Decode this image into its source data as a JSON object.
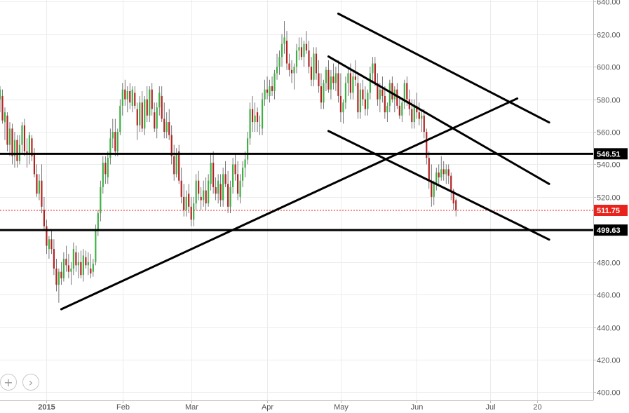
{
  "chart_data": {
    "type": "candlestick",
    "y_axis": {
      "position": "right",
      "range": [
        395,
        641
      ],
      "ticks": [
        "400.00",
        "420.00",
        "440.00",
        "460.00",
        "480.00",
        "500.00",
        "520.00",
        "540.00",
        "560.00",
        "580.00",
        "600.00",
        "620.00",
        "640.00"
      ]
    },
    "x_axis": {
      "labels": [
        {
          "label": "2015",
          "day": 0
        },
        {
          "label": "Feb",
          "day": 31
        },
        {
          "label": "Mar",
          "day": 59
        },
        {
          "label": "Apr",
          "day": 90
        },
        {
          "label": "May",
          "day": 120
        },
        {
          "label": "Jun",
          "day": 151
        },
        {
          "label": "Jul",
          "day": 181
        },
        {
          "label": "20",
          "day": 200
        }
      ],
      "range_days": [
        -19,
        223
      ]
    },
    "grid": true,
    "colors": {
      "up": "#3cb043",
      "down": "#b22222",
      "line": "#000000",
      "last_price": "#e8231c",
      "grid": "#ececec"
    },
    "horizontal_levels": [
      {
        "value": 546.51,
        "label": "546.51",
        "style": "solid"
      },
      {
        "value": 499.63,
        "label": "499.63",
        "style": "solid"
      },
      {
        "value": 511.75,
        "label": "511.75",
        "style": "dashed-red"
      }
    ],
    "trendlines": [
      {
        "from": [
          6,
          451.0
        ],
        "to": [
          192,
          580.5
        ]
      },
      {
        "from": [
          119,
          632.6
        ],
        "to": [
          205,
          565.8
        ]
      },
      {
        "from": [
          115,
          606.3
        ],
        "to": [
          205,
          528.0
        ]
      },
      {
        "from": [
          115,
          560.5
        ],
        "to": [
          205,
          493.8
        ]
      }
    ],
    "candles": [
      [
        -19,
        580,
        588,
        572,
        586
      ],
      [
        -18,
        582,
        586,
        565,
        567
      ],
      [
        -17,
        566,
        575,
        555,
        572
      ],
      [
        -16,
        570,
        572,
        548,
        552
      ],
      [
        -15,
        552,
        566,
        545,
        562
      ],
      [
        -14,
        562,
        565,
        540,
        545
      ],
      [
        -13,
        545,
        560,
        538,
        555
      ],
      [
        -12,
        555,
        558,
        538,
        542
      ],
      [
        -11,
        542,
        558,
        540,
        552
      ],
      [
        -10,
        552,
        566,
        546,
        564
      ],
      [
        -9,
        564,
        568,
        545,
        548
      ],
      [
        -8,
        548,
        556,
        538,
        546
      ],
      [
        -7,
        546,
        560,
        540,
        558
      ],
      [
        -6,
        556,
        558,
        542,
        545
      ],
      [
        -5,
        547,
        550,
        532,
        534
      ],
      [
        -4,
        534,
        540,
        520,
        522
      ],
      [
        -3,
        522,
        534,
        518,
        530
      ],
      [
        -2,
        530,
        540,
        510,
        514
      ],
      [
        -1,
        512,
        520,
        500,
        502
      ],
      [
        0,
        502,
        506,
        485,
        490
      ],
      [
        1,
        488,
        496,
        482,
        494
      ],
      [
        2,
        494,
        500,
        485,
        488
      ],
      [
        3,
        488,
        494,
        472,
        476
      ],
      [
        4,
        476,
        482,
        462,
        466
      ],
      [
        5,
        466,
        476,
        455,
        474
      ],
      [
        6,
        474,
        480,
        466,
        470
      ],
      [
        7,
        470,
        486,
        468,
        482
      ],
      [
        8,
        482,
        490,
        474,
        478
      ],
      [
        9,
        478,
        485,
        470,
        474
      ],
      [
        10,
        474,
        480,
        466,
        476
      ],
      [
        11,
        476,
        492,
        472,
        488
      ],
      [
        12,
        486,
        490,
        474,
        478
      ],
      [
        13,
        478,
        486,
        470,
        480
      ],
      [
        14,
        480,
        487,
        470,
        472
      ],
      [
        15,
        472,
        488,
        468,
        484
      ],
      [
        16,
        483,
        487,
        476,
        478
      ],
      [
        17,
        478,
        486,
        472,
        480
      ],
      [
        18,
        476,
        485,
        470,
        473
      ],
      [
        19,
        474,
        482,
        471,
        479
      ],
      [
        20,
        480,
        503,
        478,
        500
      ],
      [
        21,
        500,
        512,
        496,
        510
      ],
      [
        22,
        510,
        530,
        505,
        526
      ],
      [
        23,
        526,
        545,
        522,
        541
      ],
      [
        24,
        541,
        545,
        528,
        534
      ],
      [
        25,
        532,
        548,
        528,
        544
      ],
      [
        26,
        544,
        562,
        540,
        556
      ],
      [
        27,
        556,
        568,
        550,
        560
      ],
      [
        28,
        560,
        568,
        545,
        548
      ],
      [
        29,
        548,
        562,
        545,
        560
      ],
      [
        30,
        560,
        580,
        558,
        576
      ],
      [
        31,
        576,
        590,
        570,
        586
      ],
      [
        32,
        586,
        592,
        576,
        580
      ],
      [
        33,
        580,
        588,
        572,
        585
      ],
      [
        34,
        585,
        590,
        574,
        578
      ],
      [
        35,
        576,
        588,
        572,
        586
      ],
      [
        36,
        584,
        588,
        574,
        576
      ],
      [
        37,
        574,
        578,
        555,
        564
      ],
      [
        38,
        564,
        582,
        560,
        578
      ],
      [
        39,
        578,
        585,
        560,
        562
      ],
      [
        40,
        562,
        582,
        558,
        580
      ],
      [
        41,
        580,
        588,
        566,
        570
      ],
      [
        42,
        570,
        588,
        566,
        586
      ],
      [
        43,
        586,
        590,
        570,
        574
      ],
      [
        44,
        572,
        578,
        560,
        562
      ],
      [
        45,
        562,
        578,
        556,
        575
      ],
      [
        46,
        575,
        588,
        570,
        584
      ],
      [
        47,
        582,
        588,
        566,
        568
      ],
      [
        48,
        568,
        578,
        556,
        560
      ],
      [
        49,
        560,
        572,
        556,
        566
      ],
      [
        50,
        566,
        574,
        555,
        558
      ],
      [
        51,
        558,
        564,
        540,
        545
      ],
      [
        52,
        545,
        552,
        530,
        534
      ],
      [
        53,
        534,
        550,
        532,
        546
      ],
      [
        54,
        548,
        552,
        528,
        530
      ],
      [
        55,
        530,
        538,
        516,
        520
      ],
      [
        56,
        520,
        528,
        508,
        512
      ],
      [
        57,
        512,
        524,
        508,
        520
      ],
      [
        58,
        522,
        528,
        510,
        514
      ],
      [
        59,
        514,
        520,
        502,
        506
      ],
      [
        60,
        506,
        520,
        502,
        516
      ],
      [
        61,
        516,
        534,
        512,
        530
      ],
      [
        62,
        530,
        536,
        518,
        522
      ],
      [
        63,
        520,
        526,
        512,
        518
      ],
      [
        64,
        518,
        530,
        514,
        524
      ],
      [
        65,
        524,
        532,
        512,
        516
      ],
      [
        66,
        516,
        534,
        514,
        530
      ],
      [
        67,
        528,
        546,
        524,
        541
      ],
      [
        68,
        541,
        548,
        522,
        526
      ],
      [
        69,
        526,
        532,
        518,
        522
      ],
      [
        70,
        522,
        534,
        516,
        530
      ],
      [
        71,
        528,
        534,
        514,
        518
      ],
      [
        72,
        518,
        538,
        514,
        534
      ],
      [
        73,
        534,
        542,
        526,
        528
      ],
      [
        74,
        528,
        536,
        510,
        514
      ],
      [
        75,
        514,
        530,
        510,
        526
      ],
      [
        76,
        526,
        544,
        522,
        540
      ],
      [
        77,
        540,
        546,
        530,
        534
      ],
      [
        78,
        534,
        542,
        518,
        522
      ],
      [
        79,
        520,
        534,
        516,
        530
      ],
      [
        80,
        530,
        542,
        526,
        538
      ],
      [
        81,
        538,
        548,
        532,
        543
      ],
      [
        82,
        543,
        560,
        540,
        556
      ],
      [
        83,
        556,
        578,
        552,
        574
      ],
      [
        84,
        574,
        582,
        560,
        566
      ],
      [
        85,
        566,
        578,
        560,
        570
      ],
      [
        86,
        572,
        575,
        560,
        566
      ],
      [
        87,
        564,
        570,
        558,
        564
      ],
      [
        88,
        562,
        584,
        558,
        580
      ],
      [
        89,
        580,
        592,
        576,
        586
      ],
      [
        90,
        586,
        594,
        580,
        584
      ],
      [
        91,
        582,
        592,
        578,
        588
      ],
      [
        92,
        588,
        594,
        582,
        585
      ],
      [
        93,
        585,
        598,
        580,
        596
      ],
      [
        94,
        596,
        608,
        592,
        600
      ],
      [
        95,
        600,
        610,
        595,
        606
      ],
      [
        96,
        606,
        620,
        600,
        614
      ],
      [
        97,
        614,
        628,
        608,
        618
      ],
      [
        98,
        616,
        622,
        598,
        602
      ],
      [
        99,
        602,
        608,
        594,
        598
      ],
      [
        100,
        598,
        604,
        590,
        596
      ],
      [
        101,
        596,
        602,
        586,
        600
      ],
      [
        102,
        600,
        614,
        596,
        610
      ],
      [
        103,
        610,
        618,
        604,
        612
      ],
      [
        104,
        612,
        618,
        604,
        606
      ],
      [
        105,
        606,
        616,
        600,
        614
      ],
      [
        106,
        614,
        622,
        608,
        610
      ],
      [
        107,
        610,
        616,
        596,
        600
      ],
      [
        108,
        600,
        606,
        588,
        592
      ],
      [
        109,
        592,
        612,
        588,
        608
      ],
      [
        110,
        608,
        612,
        592,
        596
      ],
      [
        111,
        596,
        604,
        584,
        588
      ],
      [
        112,
        588,
        596,
        574,
        578
      ],
      [
        113,
        578,
        592,
        574,
        590
      ],
      [
        114,
        590,
        600,
        585,
        598
      ],
      [
        115,
        598,
        604,
        584,
        586
      ],
      [
        116,
        586,
        598,
        580,
        594
      ],
      [
        117,
        594,
        602,
        586,
        590
      ],
      [
        118,
        590,
        600,
        585,
        596
      ],
      [
        119,
        596,
        604,
        578,
        582
      ],
      [
        120,
        582,
        596,
        566,
        572
      ],
      [
        121,
        572,
        580,
        565,
        578
      ],
      [
        122,
        578,
        594,
        574,
        590
      ],
      [
        123,
        590,
        600,
        582,
        596
      ],
      [
        124,
        596,
        602,
        580,
        584
      ],
      [
        125,
        584,
        598,
        580,
        594
      ],
      [
        126,
        594,
        604,
        588,
        592
      ],
      [
        127,
        590,
        596,
        568,
        572
      ],
      [
        128,
        572,
        590,
        568,
        586
      ],
      [
        129,
        586,
        592,
        576,
        580
      ],
      [
        130,
        580,
        588,
        570,
        574
      ],
      [
        131,
        574,
        586,
        570,
        584
      ],
      [
        132,
        584,
        600,
        580,
        596
      ],
      [
        133,
        596,
        606,
        590,
        602
      ],
      [
        134,
        602,
        606,
        588,
        590
      ],
      [
        135,
        590,
        596,
        576,
        580
      ],
      [
        136,
        580,
        590,
        572,
        586
      ],
      [
        137,
        586,
        594,
        578,
        582
      ],
      [
        138,
        582,
        588,
        568,
        572
      ],
      [
        139,
        572,
        578,
        566,
        576
      ],
      [
        140,
        576,
        592,
        572,
        590
      ],
      [
        141,
        590,
        594,
        578,
        580
      ],
      [
        142,
        580,
        588,
        572,
        586
      ],
      [
        143,
        586,
        590,
        574,
        576
      ],
      [
        144,
        576,
        582,
        568,
        570
      ],
      [
        145,
        570,
        580,
        566,
        578
      ],
      [
        146,
        578,
        592,
        574,
        590
      ],
      [
        147,
        590,
        594,
        576,
        580
      ],
      [
        148,
        580,
        586,
        570,
        574
      ],
      [
        149,
        574,
        580,
        562,
        566
      ],
      [
        150,
        566,
        580,
        562,
        576
      ],
      [
        151,
        576,
        584,
        568,
        572
      ],
      [
        152,
        572,
        578,
        564,
        568
      ],
      [
        153,
        568,
        574,
        560,
        570
      ],
      [
        154,
        570,
        574,
        556,
        560
      ],
      [
        155,
        560,
        562,
        540,
        544
      ],
      [
        156,
        544,
        548,
        525,
        530
      ],
      [
        157,
        530,
        540,
        514,
        520
      ],
      [
        158,
        520,
        530,
        515,
        528
      ],
      [
        159,
        528,
        538,
        524,
        535
      ],
      [
        160,
        535,
        540,
        528,
        532
      ],
      [
        161,
        532,
        545,
        530,
        537
      ],
      [
        162,
        537,
        542,
        530,
        534
      ],
      [
        163,
        534,
        540,
        528,
        537
      ],
      [
        164,
        537,
        540,
        528,
        533
      ],
      [
        165,
        533,
        535,
        518,
        523
      ],
      [
        166,
        524,
        525,
        512,
        516
      ],
      [
        167,
        518,
        519,
        508,
        512
      ]
    ]
  }
}
